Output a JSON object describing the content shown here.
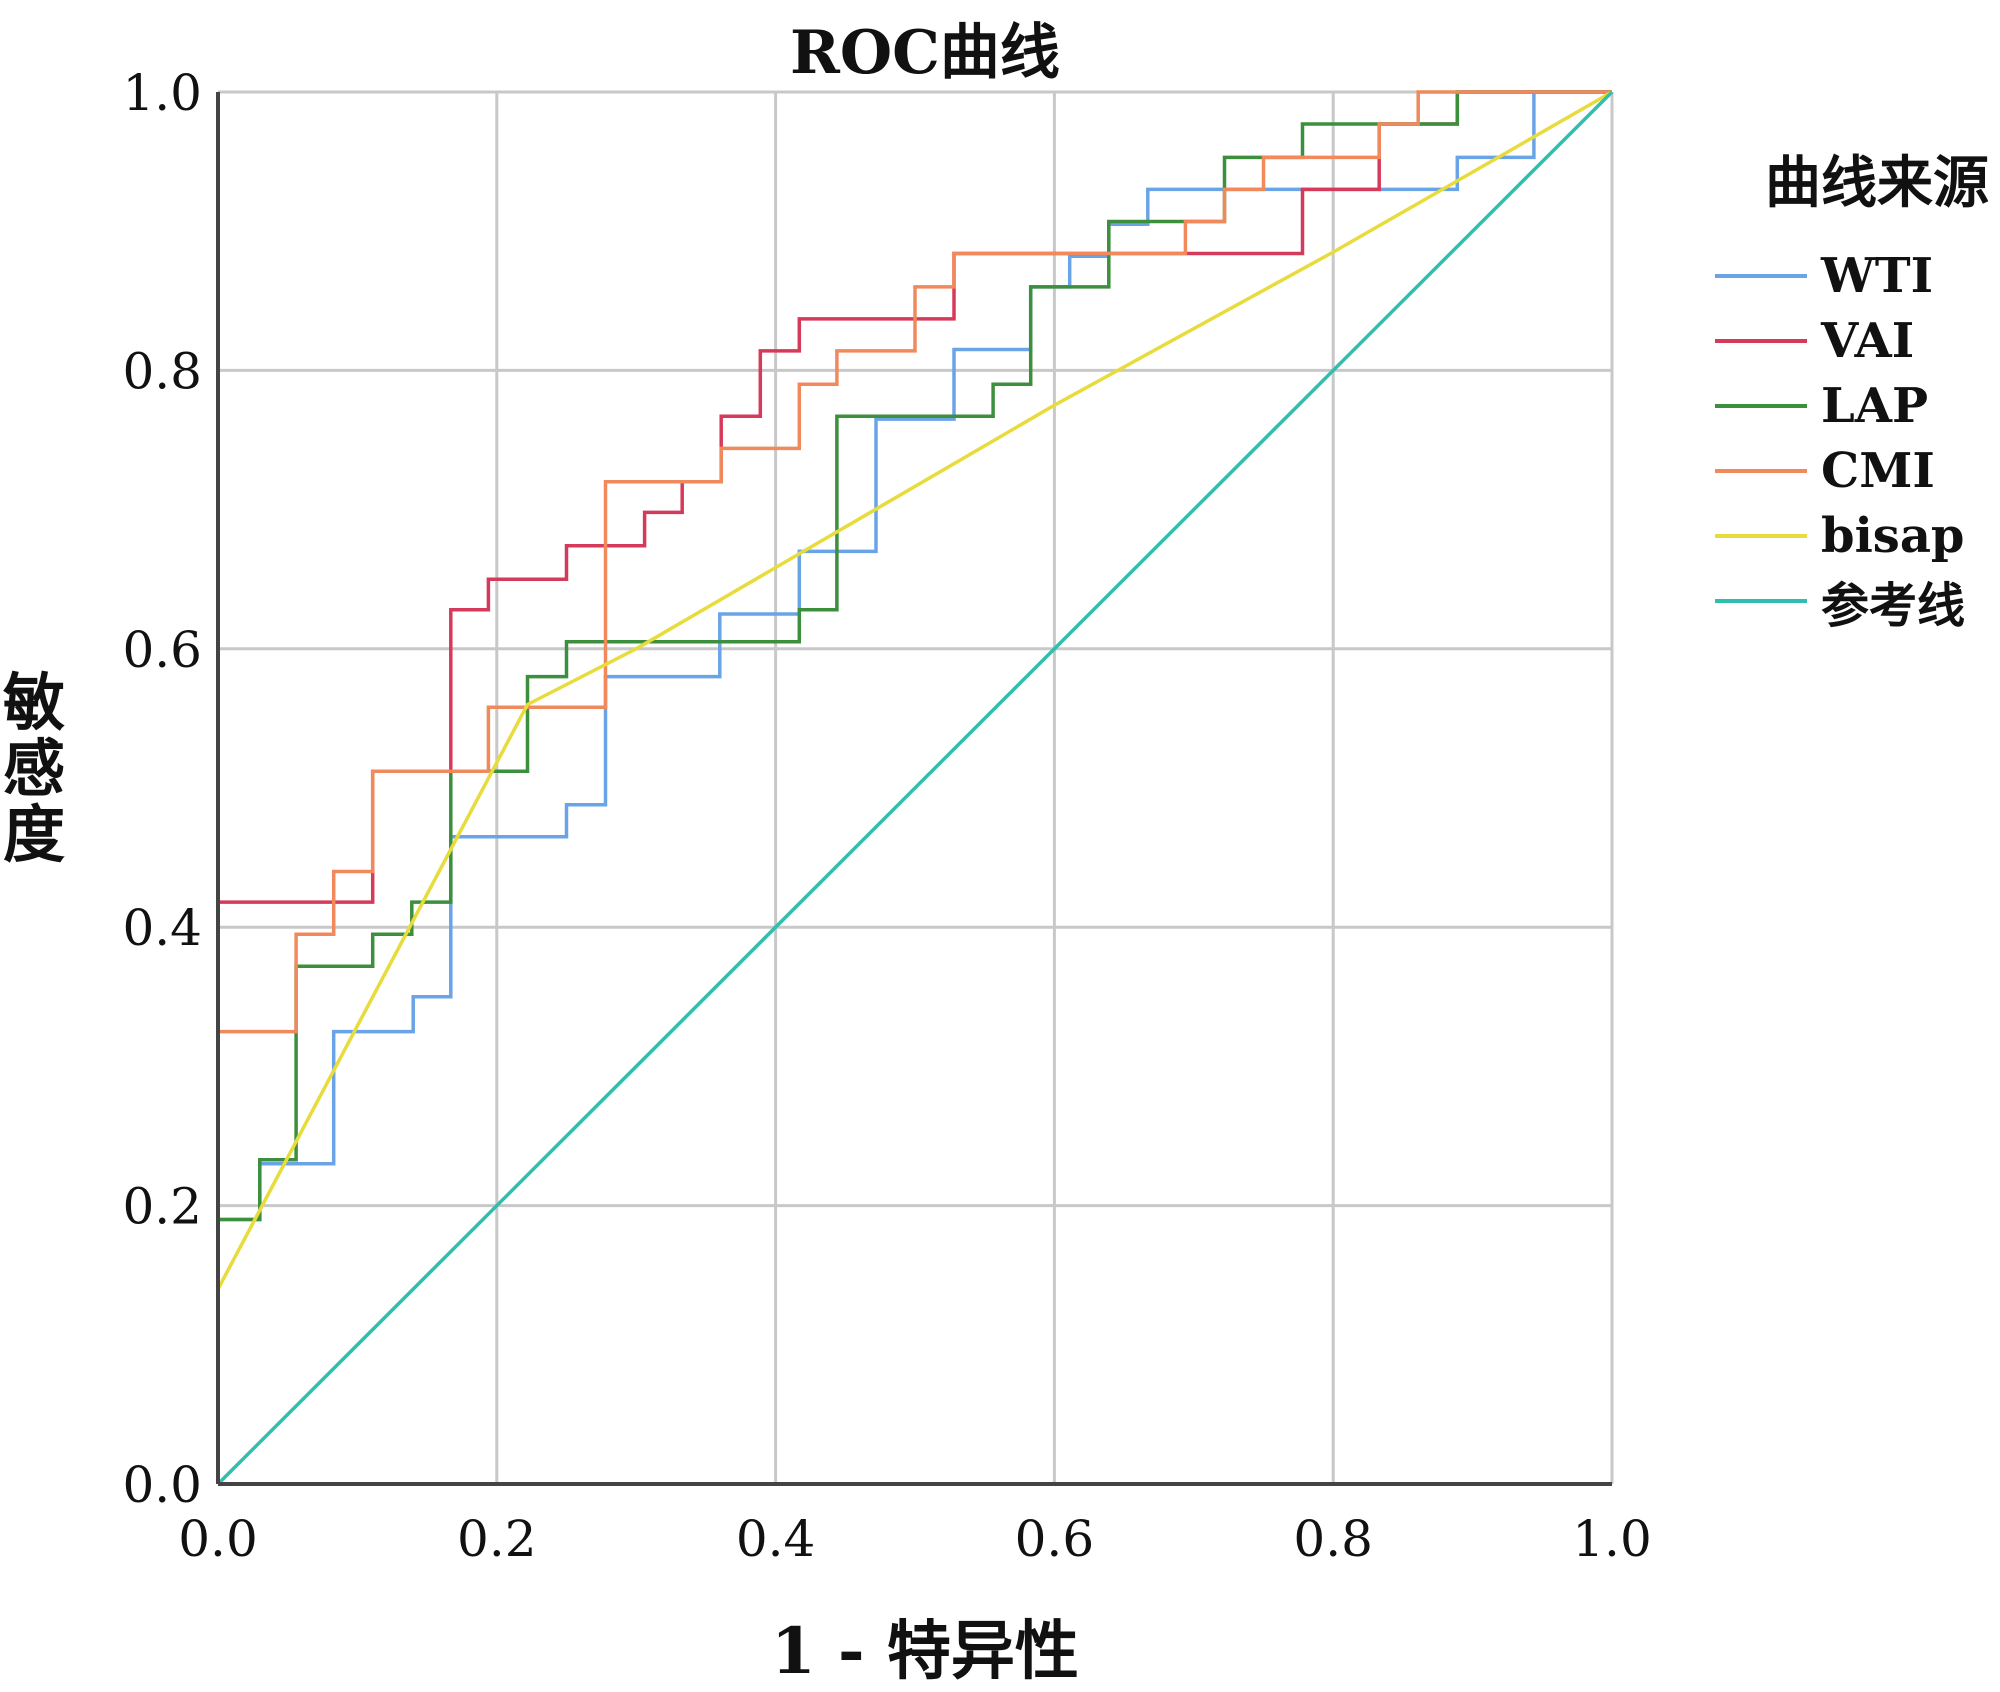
{
  "chart_data": {
    "type": "line",
    "title": "ROC曲线",
    "xlabel": "1 - 特异性",
    "ylabel": "敏感度",
    "xlim": [
      0,
      1
    ],
    "ylim": [
      0,
      1
    ],
    "x_ticks": [
      "0.0",
      "0.2",
      "0.4",
      "0.6",
      "0.8",
      "1.0"
    ],
    "y_ticks": [
      "0.0",
      "0.2",
      "0.4",
      "0.6",
      "0.8",
      "1.0"
    ],
    "grid": true,
    "legend_title": "曲线来源",
    "legend_position": "right",
    "series": [
      {
        "name": "WTI",
        "color": "#6aa4e6",
        "points": [
          [
            0,
            0
          ],
          [
            0,
            0.19
          ],
          [
            0.03,
            0.19
          ],
          [
            0.03,
            0.23
          ],
          [
            0.083,
            0.23
          ],
          [
            0.083,
            0.325
          ],
          [
            0.14,
            0.325
          ],
          [
            0.14,
            0.35
          ],
          [
            0.167,
            0.35
          ],
          [
            0.167,
            0.465
          ],
          [
            0.25,
            0.465
          ],
          [
            0.25,
            0.488
          ],
          [
            0.278,
            0.488
          ],
          [
            0.278,
            0.58
          ],
          [
            0.36,
            0.58
          ],
          [
            0.36,
            0.625
          ],
          [
            0.417,
            0.625
          ],
          [
            0.417,
            0.67
          ],
          [
            0.472,
            0.67
          ],
          [
            0.472,
            0.765
          ],
          [
            0.528,
            0.765
          ],
          [
            0.528,
            0.815
          ],
          [
            0.583,
            0.815
          ],
          [
            0.583,
            0.86
          ],
          [
            0.611,
            0.86
          ],
          [
            0.611,
            0.882
          ],
          [
            0.639,
            0.882
          ],
          [
            0.639,
            0.905
          ],
          [
            0.667,
            0.905
          ],
          [
            0.667,
            0.93
          ],
          [
            0.833,
            0.93
          ],
          [
            0.833,
            0.93
          ],
          [
            0.889,
            0.93
          ],
          [
            0.889,
            0.953
          ],
          [
            0.944,
            0.953
          ],
          [
            0.944,
            1.0
          ],
          [
            1,
            1
          ]
        ]
      },
      {
        "name": "VAI",
        "color": "#d63a5a",
        "points": [
          [
            0,
            0
          ],
          [
            0,
            0.418
          ],
          [
            0.111,
            0.418
          ],
          [
            0.111,
            0.512
          ],
          [
            0.167,
            0.512
          ],
          [
            0.167,
            0.628
          ],
          [
            0.194,
            0.628
          ],
          [
            0.194,
            0.65
          ],
          [
            0.25,
            0.65
          ],
          [
            0.25,
            0.674
          ],
          [
            0.306,
            0.674
          ],
          [
            0.306,
            0.698
          ],
          [
            0.333,
            0.698
          ],
          [
            0.333,
            0.72
          ],
          [
            0.361,
            0.72
          ],
          [
            0.361,
            0.767
          ],
          [
            0.389,
            0.767
          ],
          [
            0.389,
            0.814
          ],
          [
            0.417,
            0.814
          ],
          [
            0.417,
            0.837
          ],
          [
            0.528,
            0.837
          ],
          [
            0.528,
            0.884
          ],
          [
            0.778,
            0.884
          ],
          [
            0.778,
            0.93
          ],
          [
            0.833,
            0.93
          ],
          [
            0.833,
            0.977
          ],
          [
            0.889,
            0.977
          ],
          [
            0.889,
            1.0
          ],
          [
            1,
            1
          ]
        ]
      },
      {
        "name": "LAP",
        "color": "#3c8f3c",
        "points": [
          [
            0,
            0
          ],
          [
            0,
            0.19
          ],
          [
            0.03,
            0.19
          ],
          [
            0.03,
            0.233
          ],
          [
            0.056,
            0.233
          ],
          [
            0.056,
            0.372
          ],
          [
            0.111,
            0.372
          ],
          [
            0.111,
            0.395
          ],
          [
            0.139,
            0.395
          ],
          [
            0.139,
            0.418
          ],
          [
            0.167,
            0.418
          ],
          [
            0.167,
            0.512
          ],
          [
            0.222,
            0.512
          ],
          [
            0.222,
            0.58
          ],
          [
            0.25,
            0.58
          ],
          [
            0.25,
            0.605
          ],
          [
            0.417,
            0.605
          ],
          [
            0.417,
            0.628
          ],
          [
            0.444,
            0.628
          ],
          [
            0.444,
            0.767
          ],
          [
            0.556,
            0.767
          ],
          [
            0.556,
            0.79
          ],
          [
            0.583,
            0.79
          ],
          [
            0.583,
            0.86
          ],
          [
            0.639,
            0.86
          ],
          [
            0.639,
            0.907
          ],
          [
            0.722,
            0.907
          ],
          [
            0.722,
            0.953
          ],
          [
            0.778,
            0.953
          ],
          [
            0.778,
            0.977
          ],
          [
            0.889,
            0.977
          ],
          [
            0.889,
            1.0
          ],
          [
            1,
            1
          ]
        ]
      },
      {
        "name": "CMI",
        "color": "#f08a5d",
        "points": [
          [
            0,
            0
          ],
          [
            0,
            0.325
          ],
          [
            0.056,
            0.325
          ],
          [
            0.056,
            0.395
          ],
          [
            0.083,
            0.395
          ],
          [
            0.083,
            0.44
          ],
          [
            0.111,
            0.44
          ],
          [
            0.111,
            0.512
          ],
          [
            0.194,
            0.512
          ],
          [
            0.194,
            0.558
          ],
          [
            0.278,
            0.558
          ],
          [
            0.278,
            0.72
          ],
          [
            0.361,
            0.72
          ],
          [
            0.361,
            0.744
          ],
          [
            0.417,
            0.744
          ],
          [
            0.417,
            0.79
          ],
          [
            0.444,
            0.79
          ],
          [
            0.444,
            0.814
          ],
          [
            0.5,
            0.814
          ],
          [
            0.5,
            0.86
          ],
          [
            0.528,
            0.86
          ],
          [
            0.528,
            0.884
          ],
          [
            0.694,
            0.884
          ],
          [
            0.694,
            0.907
          ],
          [
            0.722,
            0.907
          ],
          [
            0.722,
            0.93
          ],
          [
            0.75,
            0.93
          ],
          [
            0.75,
            0.953
          ],
          [
            0.833,
            0.953
          ],
          [
            0.833,
            0.977
          ],
          [
            0.861,
            0.977
          ],
          [
            0.861,
            1.0
          ],
          [
            1,
            1
          ]
        ]
      },
      {
        "name": "bisap",
        "color": "#e8dc3c",
        "points": [
          [
            0,
            0
          ],
          [
            0,
            0.14
          ],
          [
            0.222,
            0.56
          ],
          [
            0.3,
            0.6
          ],
          [
            0.6,
            0.775
          ],
          [
            0.8,
            0.885
          ],
          [
            1,
            1
          ]
        ]
      },
      {
        "name": "参考线",
        "color": "#2fbfae",
        "points": [
          [
            0,
            0
          ],
          [
            1,
            1
          ]
        ]
      }
    ]
  }
}
